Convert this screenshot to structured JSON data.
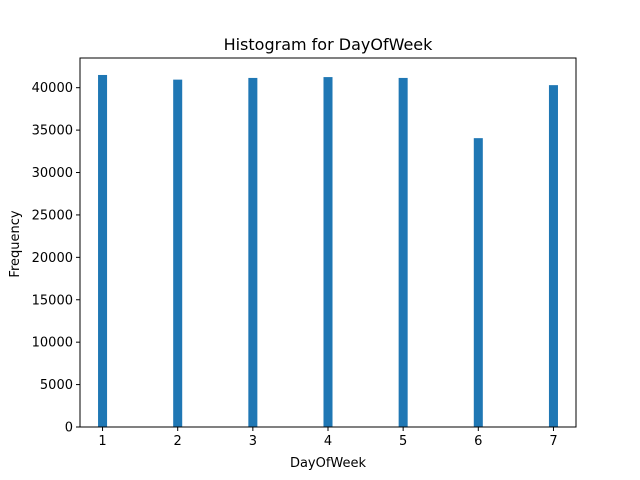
{
  "chart_data": {
    "type": "bar",
    "title": "Histogram for DayOfWeek",
    "xlabel": "DayOfWeek",
    "ylabel": "Frequency",
    "x": [
      1,
      2,
      3,
      4,
      5,
      6,
      7
    ],
    "values": [
      41500,
      40950,
      41150,
      41250,
      41150,
      34050,
      40300
    ],
    "xticks": [
      1,
      2,
      3,
      4,
      5,
      6,
      7
    ],
    "yticks": [
      0,
      5000,
      10000,
      15000,
      20000,
      25000,
      30000,
      35000,
      40000
    ],
    "xlim": [
      0.7,
      7.3
    ],
    "ylim": [
      0,
      43500
    ],
    "bar_width": 0.12,
    "grid": false,
    "colors": {
      "bar": "#1f77b4",
      "axis": "#000000"
    }
  }
}
